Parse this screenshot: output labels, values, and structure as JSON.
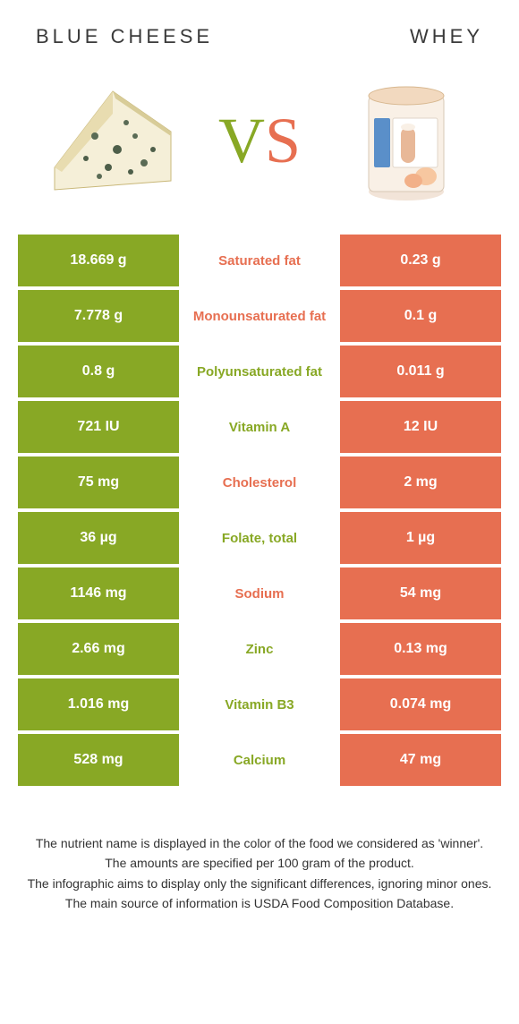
{
  "header": {
    "left_title": "BLUE CHEESE",
    "right_title": "WHEY"
  },
  "vs": {
    "v": "V",
    "s": "S"
  },
  "colors": {
    "left": "#88a825",
    "right": "#e76f51",
    "bg": "#ffffff"
  },
  "rows": [
    {
      "left": "18.669 g",
      "label": "Saturated fat",
      "right": "0.23 g",
      "winner": "right"
    },
    {
      "left": "7.778 g",
      "label": "Monounsaturated fat",
      "right": "0.1 g",
      "winner": "right"
    },
    {
      "left": "0.8 g",
      "label": "Polyunsaturated fat",
      "right": "0.011 g",
      "winner": "left"
    },
    {
      "left": "721 IU",
      "label": "Vitamin A",
      "right": "12 IU",
      "winner": "left"
    },
    {
      "left": "75 mg",
      "label": "Cholesterol",
      "right": "2 mg",
      "winner": "right"
    },
    {
      "left": "36 µg",
      "label": "Folate, total",
      "right": "1 µg",
      "winner": "left"
    },
    {
      "left": "1146 mg",
      "label": "Sodium",
      "right": "54 mg",
      "winner": "right"
    },
    {
      "left": "2.66 mg",
      "label": "Zinc",
      "right": "0.13 mg",
      "winner": "left"
    },
    {
      "left": "1.016 mg",
      "label": "Vitamin B3",
      "right": "0.074 mg",
      "winner": "left"
    },
    {
      "left": "528 mg",
      "label": "Calcium",
      "right": "47 mg",
      "winner": "left"
    }
  ],
  "footnotes": [
    "The nutrient name is displayed in the color of the food we considered as 'winner'.",
    "The amounts are specified per 100 gram of the product.",
    "The infographic aims to display only the significant differences, ignoring minor ones.",
    "The main source of information is USDA Food Composition Database."
  ]
}
